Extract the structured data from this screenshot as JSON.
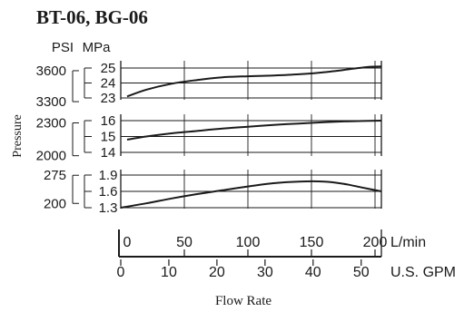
{
  "chart_data": {
    "type": "line",
    "title": "BT-06, BG-06",
    "ylabel": "Pressure",
    "xlabel": "Flow Rate",
    "unit_headers": {
      "psi": "PSI",
      "mpa": "MPa"
    },
    "x_axis_lmin": {
      "unit": "L/min",
      "range": [
        0,
        205
      ],
      "ticks": [
        0,
        50,
        100,
        150,
        200
      ],
      "tick_labels": [
        "0",
        "50",
        "100",
        "150",
        "200"
      ]
    },
    "x_axis_gpm": {
      "unit": "U.S. GPM",
      "range": [
        0,
        54.2
      ],
      "ticks": [
        0,
        10,
        20,
        30,
        40,
        50
      ],
      "tick_labels": [
        "0",
        "10",
        "20",
        "30",
        "40",
        "50"
      ]
    },
    "panels": [
      {
        "mpa_ticks": [
          23,
          24,
          25
        ],
        "mpa_tick_labels": [
          "23",
          "24",
          "25"
        ],
        "psi_ticks": [
          3300,
          3600
        ],
        "psi_tick_labels": [
          "3300",
          "3600"
        ],
        "ylim_mpa": [
          23,
          25.3
        ],
        "x": [
          5,
          20,
          40,
          60,
          80,
          100,
          120,
          140,
          160,
          180,
          195,
          205
        ],
        "y": [
          23.1,
          23.55,
          23.95,
          24.2,
          24.38,
          24.45,
          24.5,
          24.58,
          24.72,
          24.92,
          25.08,
          25.1
        ]
      },
      {
        "mpa_ticks": [
          14,
          15,
          16
        ],
        "mpa_tick_labels": [
          "14",
          "15",
          "16"
        ],
        "psi_ticks": [
          2000,
          2300
        ],
        "psi_tick_labels": [
          "2000",
          "2300"
        ],
        "ylim_mpa": [
          14,
          16.2
        ],
        "x": [
          5,
          20,
          40,
          60,
          80,
          100,
          120,
          140,
          160,
          180,
          205
        ],
        "y": [
          14.8,
          15.0,
          15.2,
          15.35,
          15.5,
          15.62,
          15.73,
          15.82,
          15.9,
          15.96,
          16.0
        ]
      },
      {
        "mpa_ticks": [
          1.3,
          1.6,
          1.9
        ],
        "mpa_tick_labels": [
          "1.3",
          "1.6",
          "1.9"
        ],
        "psi_ticks": [
          200,
          275
        ],
        "psi_tick_labels": [
          "200",
          "275"
        ],
        "ylim_mpa": [
          1.28,
          1.97
        ],
        "x": [
          0,
          20,
          40,
          60,
          80,
          100,
          120,
          140,
          160,
          175,
          190,
          205
        ],
        "y": [
          1.3,
          1.38,
          1.47,
          1.55,
          1.62,
          1.69,
          1.75,
          1.78,
          1.78,
          1.74,
          1.67,
          1.6
        ]
      }
    ],
    "colors": {
      "line": "#1a1a1a",
      "grid": "#1a1a1a",
      "background": "#ffffff"
    }
  }
}
